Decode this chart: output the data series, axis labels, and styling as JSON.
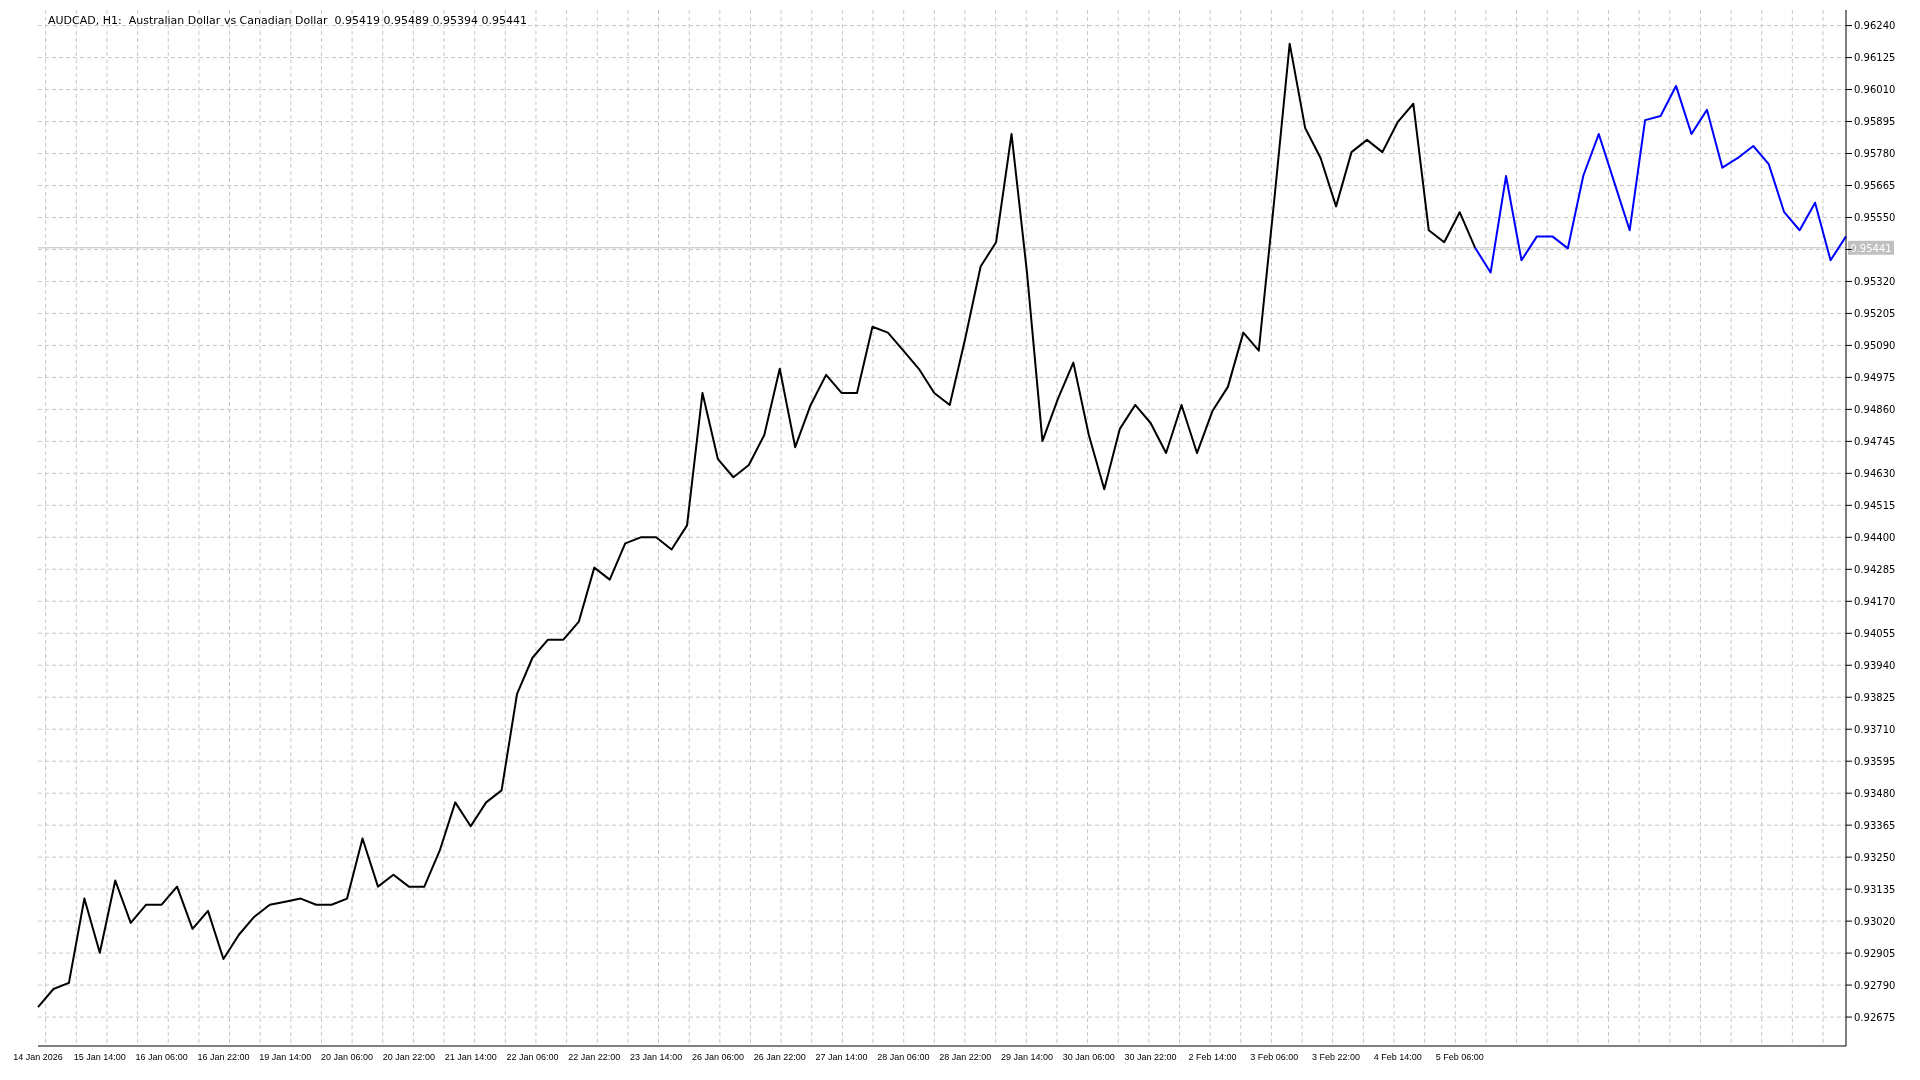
{
  "chart_data": {
    "type": "line",
    "title": "AUDCAD, H1:  Australian Dollar vs Canadian Dollar  0.95419 0.95489 0.95394 0.95441",
    "marker": "none",
    "grid": true,
    "ylim": [
      0.92571,
      0.96296
    ],
    "categories": [
      "14 Jan 2026",
      null,
      null,
      null,
      "15 Jan 14:00",
      null,
      null,
      null,
      "16 Jan 06:00",
      null,
      null,
      null,
      "16 Jan 22:00",
      null,
      null,
      null,
      "19 Jan 14:00",
      null,
      null,
      null,
      "20 Jan 06:00",
      null,
      null,
      null,
      "20 Jan 22:00",
      null,
      null,
      null,
      "21 Jan 14:00",
      null,
      null,
      null,
      "22 Jan 06:00",
      null,
      null,
      null,
      "22 Jan 22:00",
      null,
      null,
      null,
      "23 Jan 14:00",
      null,
      null,
      null,
      "26 Jan 06:00",
      null,
      null,
      null,
      "26 Jan 22:00",
      null,
      null,
      null,
      "27 Jan 14:00",
      null,
      null,
      null,
      "28 Jan 06:00",
      null,
      null,
      null,
      "28 Jan 22:00",
      null,
      null,
      null,
      "29 Jan 14:00",
      null,
      null,
      null,
      "30 Jan 06:00",
      null,
      null,
      null,
      "30 Jan 22:00",
      null,
      null,
      null,
      "2 Feb 14:00",
      null,
      null,
      null,
      "3 Feb 06:00",
      null,
      null,
      null,
      "3 Feb 22:00",
      null,
      null,
      null,
      "4 Feb 14:00",
      null,
      null,
      null,
      "5 Feb 06:00",
      null,
      null,
      null,
      null,
      null,
      null,
      null,
      null,
      null,
      null,
      null,
      null,
      null,
      null,
      null,
      null,
      null,
      null,
      null,
      null,
      null,
      null,
      null,
      null,
      null
    ],
    "yticks": [
      0.92675,
      {
        "value": 0.9279,
        "label": "0.92790"
      },
      0.92905,
      {
        "value": 0.9302,
        "label": "0.93020"
      },
      0.93135,
      {
        "value": 0.9325,
        "label": "0.93250"
      },
      0.93365,
      {
        "value": 0.9348,
        "label": "0.93480"
      },
      0.93595,
      {
        "value": 0.9371,
        "label": "0.93710"
      },
      0.93825,
      {
        "value": 0.9394,
        "label": "0.93940"
      },
      0.94055,
      {
        "value": 0.9417,
        "label": "0.94170"
      },
      0.94285,
      {
        "value": 0.944,
        "label": "0.94400"
      },
      0.94515,
      {
        "value": 0.9463,
        "label": "0.94630"
      },
      0.94745,
      {
        "value": 0.9486,
        "label": "0.94860"
      },
      0.94975,
      {
        "value": 0.9509,
        "label": "0.95090"
      },
      0.95205,
      {
        "value": 0.9532,
        "label": "0.95320"
      },
      {
        "value": 0.95435,
        "label": null
      },
      {
        "value": 0.9555,
        "label": "0.95550"
      },
      0.95665,
      {
        "value": 0.9578,
        "label": "0.95780"
      },
      0.95895,
      {
        "value": 0.9601,
        "label": "0.96010"
      },
      0.96125,
      {
        "value": 0.9624,
        "label": "0.96240"
      }
    ],
    "ref_lines": [
      {
        "axis": "y",
        "value": 0.95441,
        "label": "0.95441",
        "color": "#c0c0c0"
      }
    ],
    "series": [
      {
        "color": "#000000",
        "values": [
          0.92711,
          0.92776,
          0.92798,
          0.93101,
          0.92906,
          0.93166,
          0.93014,
          0.93079,
          0.93079,
          0.93144,
          0.92992,
          0.93057,
          0.92884,
          0.92971,
          0.93036,
          0.93079,
          0.9309,
          0.93101,
          0.93079,
          0.93079,
          0.93101,
          0.93317,
          0.93144,
          0.93187,
          0.93144,
          0.93144,
          0.93274,
          0.93447,
          0.93361,
          0.93447,
          0.9349,
          0.93837,
          0.93967,
          0.94032,
          0.94032,
          0.94097,
          0.94291,
          0.94248,
          0.94378,
          0.944,
          0.944,
          0.94356,
          0.94443,
          0.94919,
          0.94681,
          0.94616,
          0.9466,
          0.94768,
          0.95006,
          0.94724,
          0.94876,
          0.94984,
          0.94919,
          0.94919,
          0.95157,
          0.95136,
          0.95071,
          0.95006,
          0.94919,
          0.94876,
          0.95114,
          0.95374,
          0.95461,
          0.9585,
          0.95352,
          0.94746,
          0.94898,
          0.95028,
          0.94768,
          0.94573,
          0.94789,
          0.94876,
          0.94811,
          0.94703,
          0.94876,
          0.94703,
          0.94854,
          0.94941,
          0.95136,
          0.95071,
          0.95612,
          0.96175,
          0.95872,
          0.95764,
          0.9559,
          0.95785,
          0.95829,
          0.95785,
          0.95894,
          0.95959,
          0.95504,
          0.95461,
          0.95569,
          0.95441,
          null,
          null,
          null,
          null,
          null,
          null,
          null,
          null,
          null,
          null,
          null,
          null,
          null,
          null,
          null,
          null,
          null,
          null,
          null,
          null,
          null,
          null,
          null,
          null
        ]
      },
      {
        "color": "#0000ff",
        "values": [
          null,
          null,
          null,
          null,
          null,
          null,
          null,
          null,
          null,
          null,
          null,
          null,
          null,
          null,
          null,
          null,
          null,
          null,
          null,
          null,
          null,
          null,
          null,
          null,
          null,
          null,
          null,
          null,
          null,
          null,
          null,
          null,
          null,
          null,
          null,
          null,
          null,
          null,
          null,
          null,
          null,
          null,
          null,
          null,
          null,
          null,
          null,
          null,
          null,
          null,
          null,
          null,
          null,
          null,
          null,
          null,
          null,
          null,
          null,
          null,
          null,
          null,
          null,
          null,
          null,
          null,
          null,
          null,
          null,
          null,
          null,
          null,
          null,
          null,
          null,
          null,
          null,
          null,
          null,
          null,
          null,
          null,
          null,
          null,
          null,
          null,
          null,
          null,
          null,
          null,
          null,
          null,
          null,
          0.95441,
          0.95352,
          0.95699,
          0.95396,
          0.95482,
          0.95482,
          0.95439,
          0.957,
          0.9585,
          0.95677,
          0.95504,
          0.959,
          0.95915,
          0.96023,
          0.9585,
          0.95937,
          0.95729,
          0.95764,
          0.95807,
          0.95742,
          0.95569,
          0.95504,
          0.95603,
          0.95396,
          0.95482
        ]
      }
    ]
  }
}
